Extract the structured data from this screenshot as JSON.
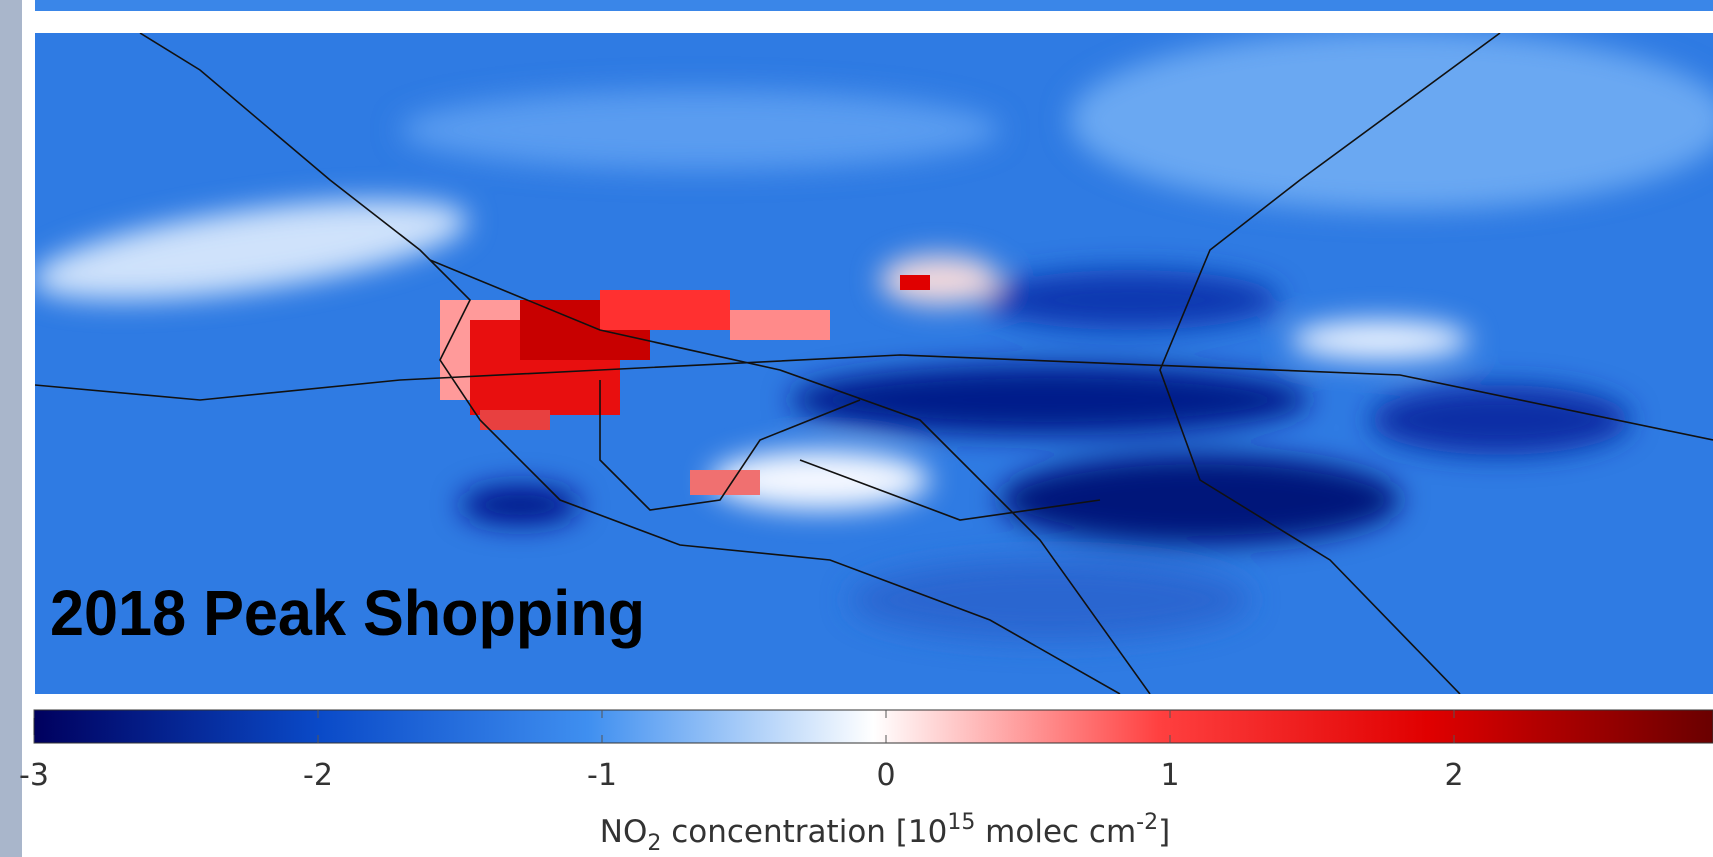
{
  "panel_label": "2018 Peak Shopping",
  "colorbar": {
    "lim": [
      -3,
      3
    ],
    "ticks": [
      -3,
      -2,
      -1,
      0,
      1,
      2
    ],
    "label": {
      "species": "NO",
      "species_sub": "2",
      "text": " concentration [10",
      "exponent": "15",
      "unit": " molec cm",
      "unit_exponent": "-2",
      "close": "]"
    }
  }
}
